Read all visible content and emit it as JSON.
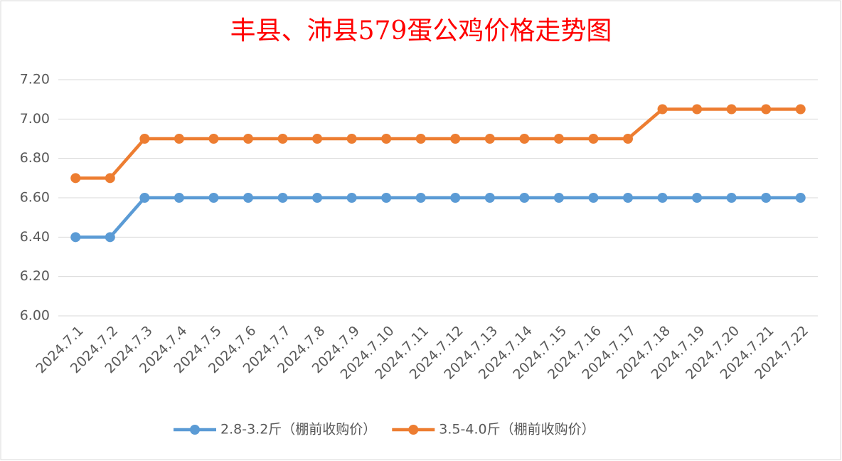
{
  "chart_data": {
    "type": "line",
    "title": "丰县、沛县579蛋公鸡价格走势图",
    "categories": [
      "2024.7.1",
      "2024.7.2",
      "2024.7.3",
      "2024.7.4",
      "2024.7.5",
      "2024.7.6",
      "2024.7.7",
      "2024.7.8",
      "2024.7.9",
      "2024.7.10",
      "2024.7.11",
      "2024.7.12",
      "2024.7.13",
      "2024.7.14",
      "2024.7.15",
      "2024.7.16",
      "2024.7.17",
      "2024.7.18",
      "2024.7.19",
      "2024.7.20",
      "2024.7.21",
      "2024.7.22"
    ],
    "series": [
      {
        "name": "2.8-3.2斤（棚前收购价）",
        "color": "#5b9bd5",
        "values": [
          6.4,
          6.4,
          6.6,
          6.6,
          6.6,
          6.6,
          6.6,
          6.6,
          6.6,
          6.6,
          6.6,
          6.6,
          6.6,
          6.6,
          6.6,
          6.6,
          6.6,
          6.6,
          6.6,
          6.6,
          6.6,
          6.6
        ]
      },
      {
        "name": "3.5-4.0斤（棚前收购价）",
        "color": "#ed7d31",
        "values": [
          6.7,
          6.7,
          6.9,
          6.9,
          6.9,
          6.9,
          6.9,
          6.9,
          6.9,
          6.9,
          6.9,
          6.9,
          6.9,
          6.9,
          6.9,
          6.9,
          6.9,
          7.05,
          7.05,
          7.05,
          7.05,
          7.05
        ]
      }
    ],
    "ylim": [
      6,
      7.2
    ],
    "yticks": [
      {
        "value": 6,
        "label": "6.00"
      },
      {
        "value": 6.2,
        "label": "6.20"
      },
      {
        "value": 6.4,
        "label": "6.40"
      },
      {
        "value": 6.6,
        "label": "6.60"
      },
      {
        "value": 6.8,
        "label": "6.80"
      },
      {
        "value": 7,
        "label": "7.00"
      },
      {
        "value": 7.2,
        "label": "7.20"
      }
    ],
    "grid": true,
    "legend": "bottom",
    "title_color": "#ff0000"
  }
}
